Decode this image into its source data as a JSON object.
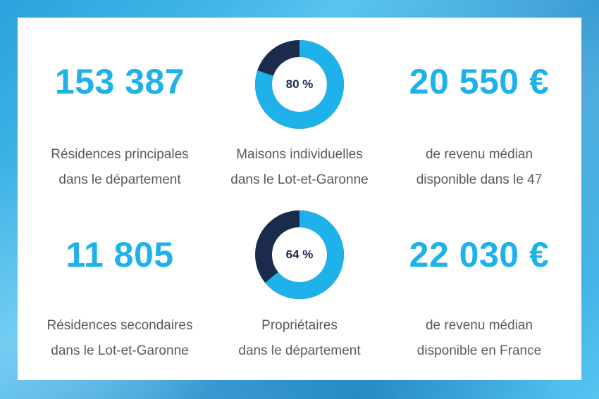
{
  "stats": {
    "residences_principales": {
      "value": "153 387",
      "line1": "Résidences principales",
      "line2": "dans le département"
    },
    "maisons_individuelles": {
      "percent": 80,
      "label": "80 %",
      "line1": "Maisons individuelles",
      "line2": "dans le Lot-et-Garonne"
    },
    "revenu_47": {
      "value": "20 550 €",
      "line1": "de revenu médian",
      "line2": "disponible dans le 47"
    },
    "residences_secondaires": {
      "value": "11 805",
      "line1": "Résidences secondaires",
      "line2": "dans le Lot-et-Garonne"
    },
    "proprietaires": {
      "percent": 64,
      "label": "64 %",
      "line1": "Propriétaires",
      "line2": "dans le département"
    },
    "revenu_france": {
      "value": "22 030 €",
      "line1": "de revenu médian",
      "line2": "disponible en France"
    }
  },
  "colors": {
    "accent": "#1fb2ea",
    "dark": "#1b2b4b",
    "text": "#555a60",
    "donut_fill": "#1fb2ea",
    "donut_rest": "#1b2b4b"
  }
}
